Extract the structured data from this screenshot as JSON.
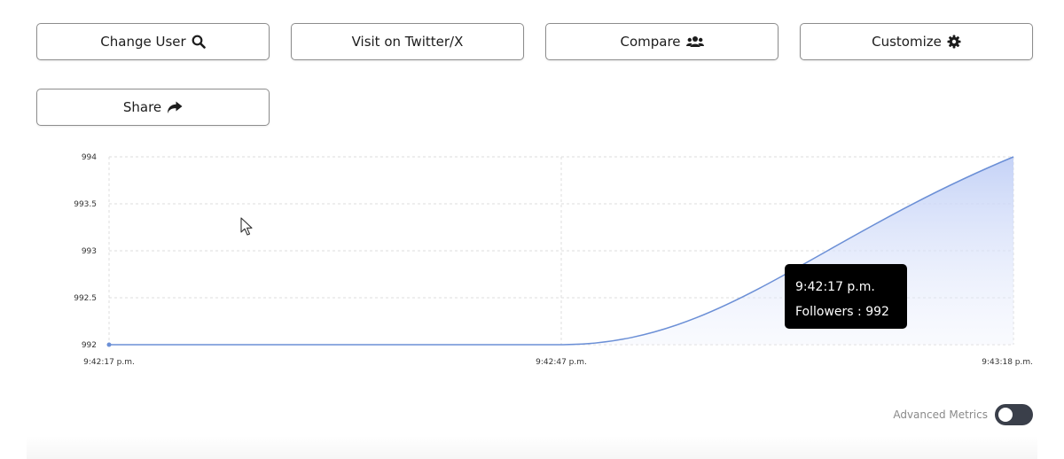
{
  "buttons": {
    "change_user": {
      "label": "Change User",
      "icon": "search-icon"
    },
    "visit": {
      "label": "Visit on Twitter/X"
    },
    "compare": {
      "label": "Compare",
      "icon": "users-icon"
    },
    "customize": {
      "label": "Customize",
      "icon": "gear-icon"
    },
    "share": {
      "label": "Share",
      "icon": "share-arrow-icon"
    }
  },
  "chart_data": {
    "type": "area",
    "x": [
      "9:42:17 p.m.",
      "9:42:47 p.m.",
      "9:43:18 p.m."
    ],
    "series": [
      {
        "values": [
          992,
          992,
          994
        ]
      }
    ],
    "yticks": [
      "994",
      "993.5",
      "993",
      "992.5",
      "992"
    ],
    "ylim": [
      992,
      994
    ],
    "grid": true,
    "line_color": "#6b8fd6",
    "fill_color": "#c9d6f7"
  },
  "tooltip": {
    "time": "9:42:17 p.m.",
    "label": "Followers : 992"
  },
  "advanced_metrics": {
    "label": "Advanced Metrics",
    "enabled": false
  }
}
